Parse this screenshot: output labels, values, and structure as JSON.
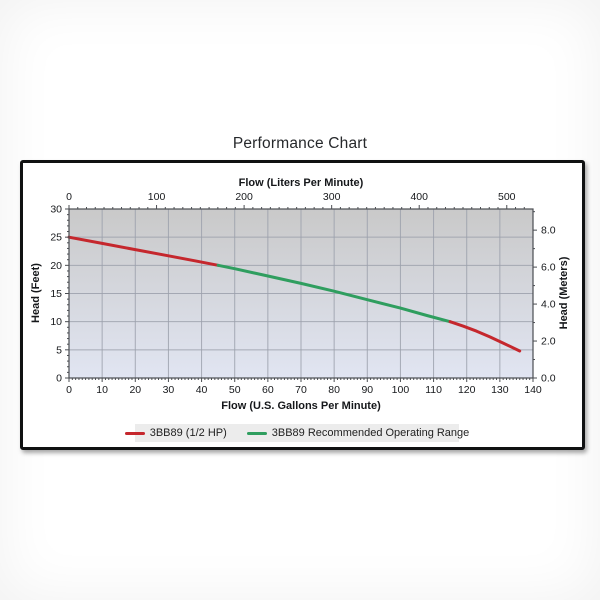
{
  "chart_data": {
    "type": "line",
    "title": "Performance Chart",
    "axes": {
      "top": {
        "label": "Flow (Liters Per Minute)",
        "ticks": [
          0,
          100,
          200,
          300,
          400,
          500
        ],
        "max": 529.96,
        "minor_step": 10
      },
      "bottom": {
        "label": "Flow (U.S. Gallons Per Minute)",
        "ticks": [
          0,
          10,
          20,
          30,
          40,
          50,
          60,
          70,
          80,
          90,
          100,
          110,
          120,
          130,
          140
        ],
        "max": 140,
        "minor_step": 1
      },
      "left": {
        "label": "Head (Feet)",
        "ticks": [
          0,
          5,
          10,
          15,
          20,
          25,
          30
        ],
        "max": 30,
        "minor_step": 1
      },
      "right": {
        "label": "Head (Meters)",
        "ticks": [
          "0.0",
          "2.0",
          "4.0",
          "6.0",
          "8.0"
        ],
        "tick_values_m": [
          0,
          2,
          4,
          6,
          8
        ],
        "minor_values_m": [
          1,
          3,
          5,
          7,
          9
        ],
        "max_m": 9.144
      }
    },
    "grid": {
      "x_step_gpm": 10,
      "y_step_ft": 5
    },
    "curve": {
      "points_gpm_ft": [
        [
          0,
          25.0
        ],
        [
          10,
          23.9
        ],
        [
          20,
          22.8
        ],
        [
          30,
          21.7
        ],
        [
          38,
          20.8
        ],
        [
          45,
          20.0
        ],
        [
          50,
          19.4
        ],
        [
          60,
          18.1
        ],
        [
          70,
          16.8
        ],
        [
          80,
          15.4
        ],
        [
          90,
          13.9
        ],
        [
          100,
          12.4
        ],
        [
          108,
          11.1
        ],
        [
          115,
          10.0
        ],
        [
          119,
          9.2
        ],
        [
          123,
          8.3
        ],
        [
          127,
          7.3
        ],
        [
          131,
          6.2
        ],
        [
          136,
          4.8
        ]
      ],
      "recommended_range_gpm": [
        45,
        115
      ]
    },
    "series": [
      {
        "name": "3BB89 (1/2 HP)",
        "color": "#c5272d"
      },
      {
        "name": "3BB89 Recommended Operating Range",
        "color": "#2f9e5f"
      }
    ],
    "legend": {
      "position": "bottom"
    },
    "colors": {
      "plot_bg_top": "#c9c9c9",
      "plot_bg_bottom": "#e1e5f2",
      "gridline": "#9ba0ab",
      "axis": "#4a4d52"
    }
  }
}
